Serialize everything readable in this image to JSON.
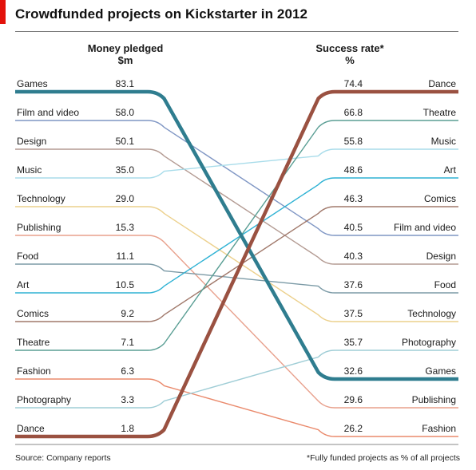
{
  "title": "Crowdfunded projects on Kickstarter in 2012",
  "left_header": {
    "line1": "Money pledged",
    "line2": "$m"
  },
  "right_header": {
    "line1": "Success rate*",
    "line2": "%"
  },
  "footer": {
    "source": "Source: Company reports",
    "note": "*Fully funded projects as % of all projects"
  },
  "chart_data": {
    "type": "slopegraph",
    "left_axis": "Money pledged, $m",
    "right_axis": "Success rate*, %",
    "categories": [
      {
        "name": "Games",
        "money": 83.1,
        "success": 32.6,
        "color": "#2f7d8f",
        "bold": true
      },
      {
        "name": "Film and video",
        "money": 58.0,
        "success": 40.5,
        "color": "#7f96c4"
      },
      {
        "name": "Design",
        "money": 50.1,
        "success": 40.3,
        "color": "#b39a92"
      },
      {
        "name": "Music",
        "money": 35.0,
        "success": 55.8,
        "color": "#a8dcea"
      },
      {
        "name": "Technology",
        "money": 29.0,
        "success": 37.5,
        "color": "#ecd08c"
      },
      {
        "name": "Publishing",
        "money": 15.3,
        "success": 29.6,
        "color": "#e8a08c"
      },
      {
        "name": "Food",
        "money": 11.1,
        "success": 37.6,
        "color": "#7b9aa6"
      },
      {
        "name": "Art",
        "money": 10.5,
        "success": 48.6,
        "color": "#2fb2d4"
      },
      {
        "name": "Comics",
        "money": 9.2,
        "success": 46.3,
        "color": "#a0786a"
      },
      {
        "name": "Theatre",
        "money": 7.1,
        "success": 66.8,
        "color": "#5a9e94"
      },
      {
        "name": "Fashion",
        "money": 6.3,
        "success": 26.2,
        "color": "#ea8a6c"
      },
      {
        "name": "Photography",
        "money": 3.3,
        "success": 35.7,
        "color": "#9fcdd6"
      },
      {
        "name": "Dance",
        "money": 1.8,
        "success": 74.4,
        "color": "#9a5141",
        "bold": true
      }
    ]
  }
}
